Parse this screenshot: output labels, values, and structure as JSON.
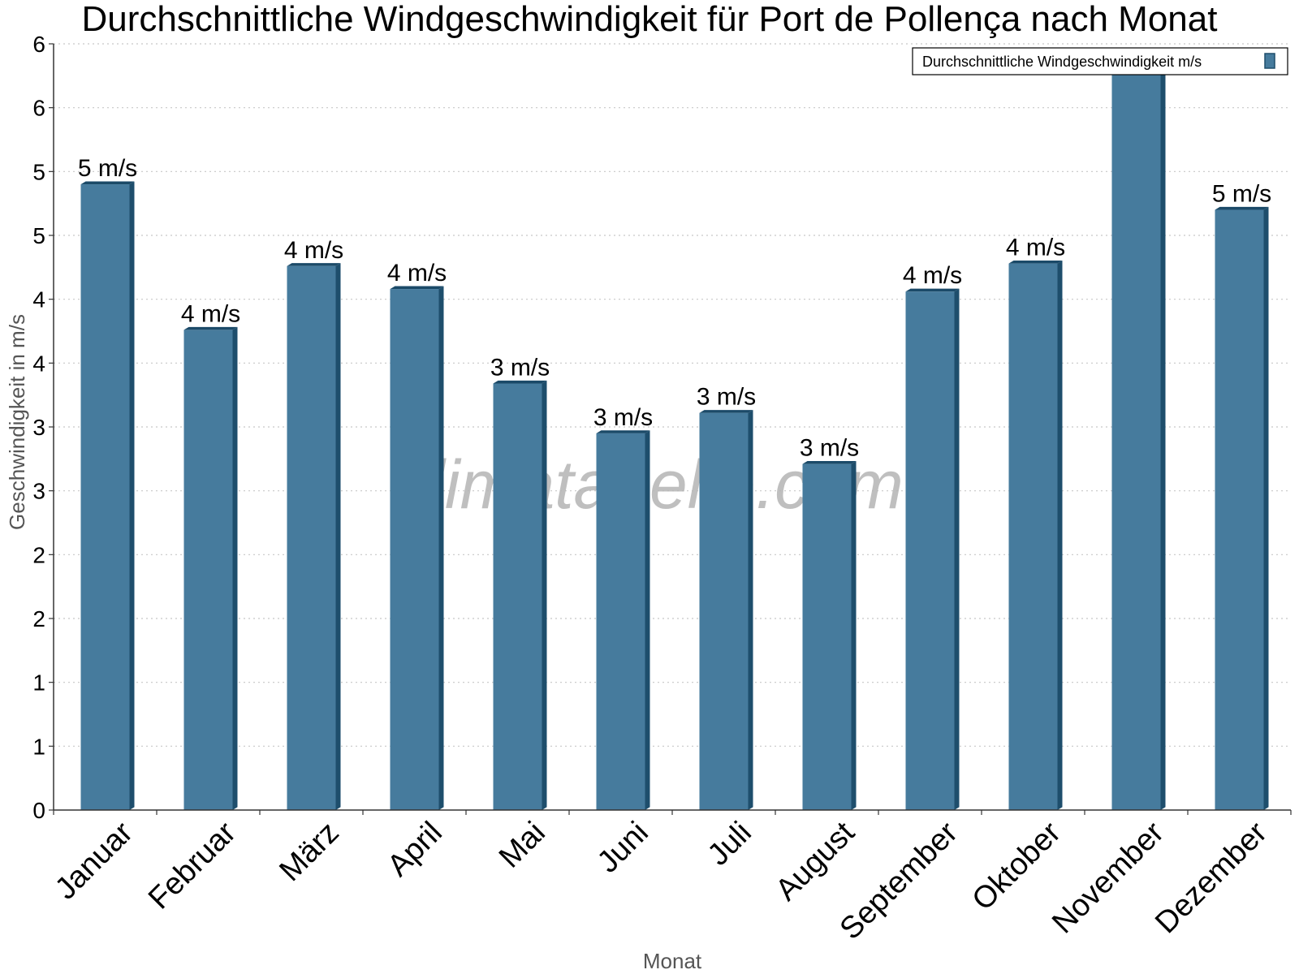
{
  "chart_data": {
    "type": "bar",
    "title": "Durchschnittliche Windgeschwindigkeit für Port de Pollença nach Monat",
    "xlabel": "Monat",
    "ylabel": "Geschwindigkeit in m/s",
    "categories": [
      "Januar",
      "Februar",
      "März",
      "April",
      "Mai",
      "Juni",
      "Juli",
      "August",
      "September",
      "Oktober",
      "November",
      "Dezember"
    ],
    "series": [
      {
        "name": "Durchschnittliche Windgeschwindigkeit m/s",
        "values": [
          4.9,
          3.76,
          4.26,
          4.08,
          3.34,
          2.95,
          3.11,
          2.71,
          4.06,
          4.28,
          5.85,
          4.7
        ],
        "labels": [
          "5 m/s",
          "4 m/s",
          "4 m/s",
          "4 m/s",
          "3 m/s",
          "3 m/s",
          "3 m/s",
          "3 m/s",
          "4 m/s",
          "4 m/s",
          "",
          "5 m/s"
        ]
      }
    ],
    "ylim": [
      0,
      6
    ],
    "yticks": [
      0,
      0.5,
      1,
      1.5,
      2,
      2.5,
      3,
      3.5,
      4,
      4.5,
      5,
      5.5,
      6
    ],
    "ytick_labels": [
      "0",
      "1",
      "1",
      "2",
      "2",
      "3",
      "3",
      "4",
      "4",
      "5",
      "5",
      "6",
      "6"
    ],
    "grid": true,
    "legend": "top-right",
    "watermark": "klimatabelle.com",
    "colors": {
      "bar": "#467b9d",
      "bar_side": "#1e4e6c",
      "bar_top": "#1b4a68"
    }
  }
}
